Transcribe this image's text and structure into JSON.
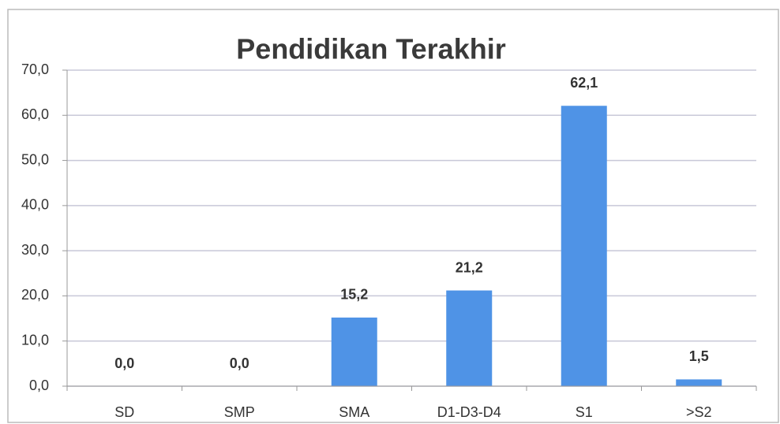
{
  "chart_data": {
    "type": "bar",
    "title": "Pendidikan Terakhir",
    "categories": [
      "SD",
      "SMP",
      "SMA",
      "D1-D3-D4",
      "S1",
      ">S2"
    ],
    "values": [
      0.0,
      0.0,
      15.2,
      21.2,
      62.1,
      1.5
    ],
    "value_labels": [
      "0,0",
      "0,0",
      "15,2",
      "21,2",
      "62,1",
      "1,5"
    ],
    "color": "#4f93e6",
    "ylim": [
      0,
      70
    ],
    "yticks": [
      {
        "value": 0,
        "label": "0,0"
      },
      {
        "value": 10,
        "label": "10,0"
      },
      {
        "value": 20,
        "label": "20,0"
      },
      {
        "value": 30,
        "label": "30,0"
      },
      {
        "value": 40,
        "label": "40,0"
      },
      {
        "value": 50,
        "label": "50,0"
      },
      {
        "value": 60,
        "label": "60,0"
      },
      {
        "value": 70,
        "label": "70,0"
      }
    ],
    "grid": true
  }
}
